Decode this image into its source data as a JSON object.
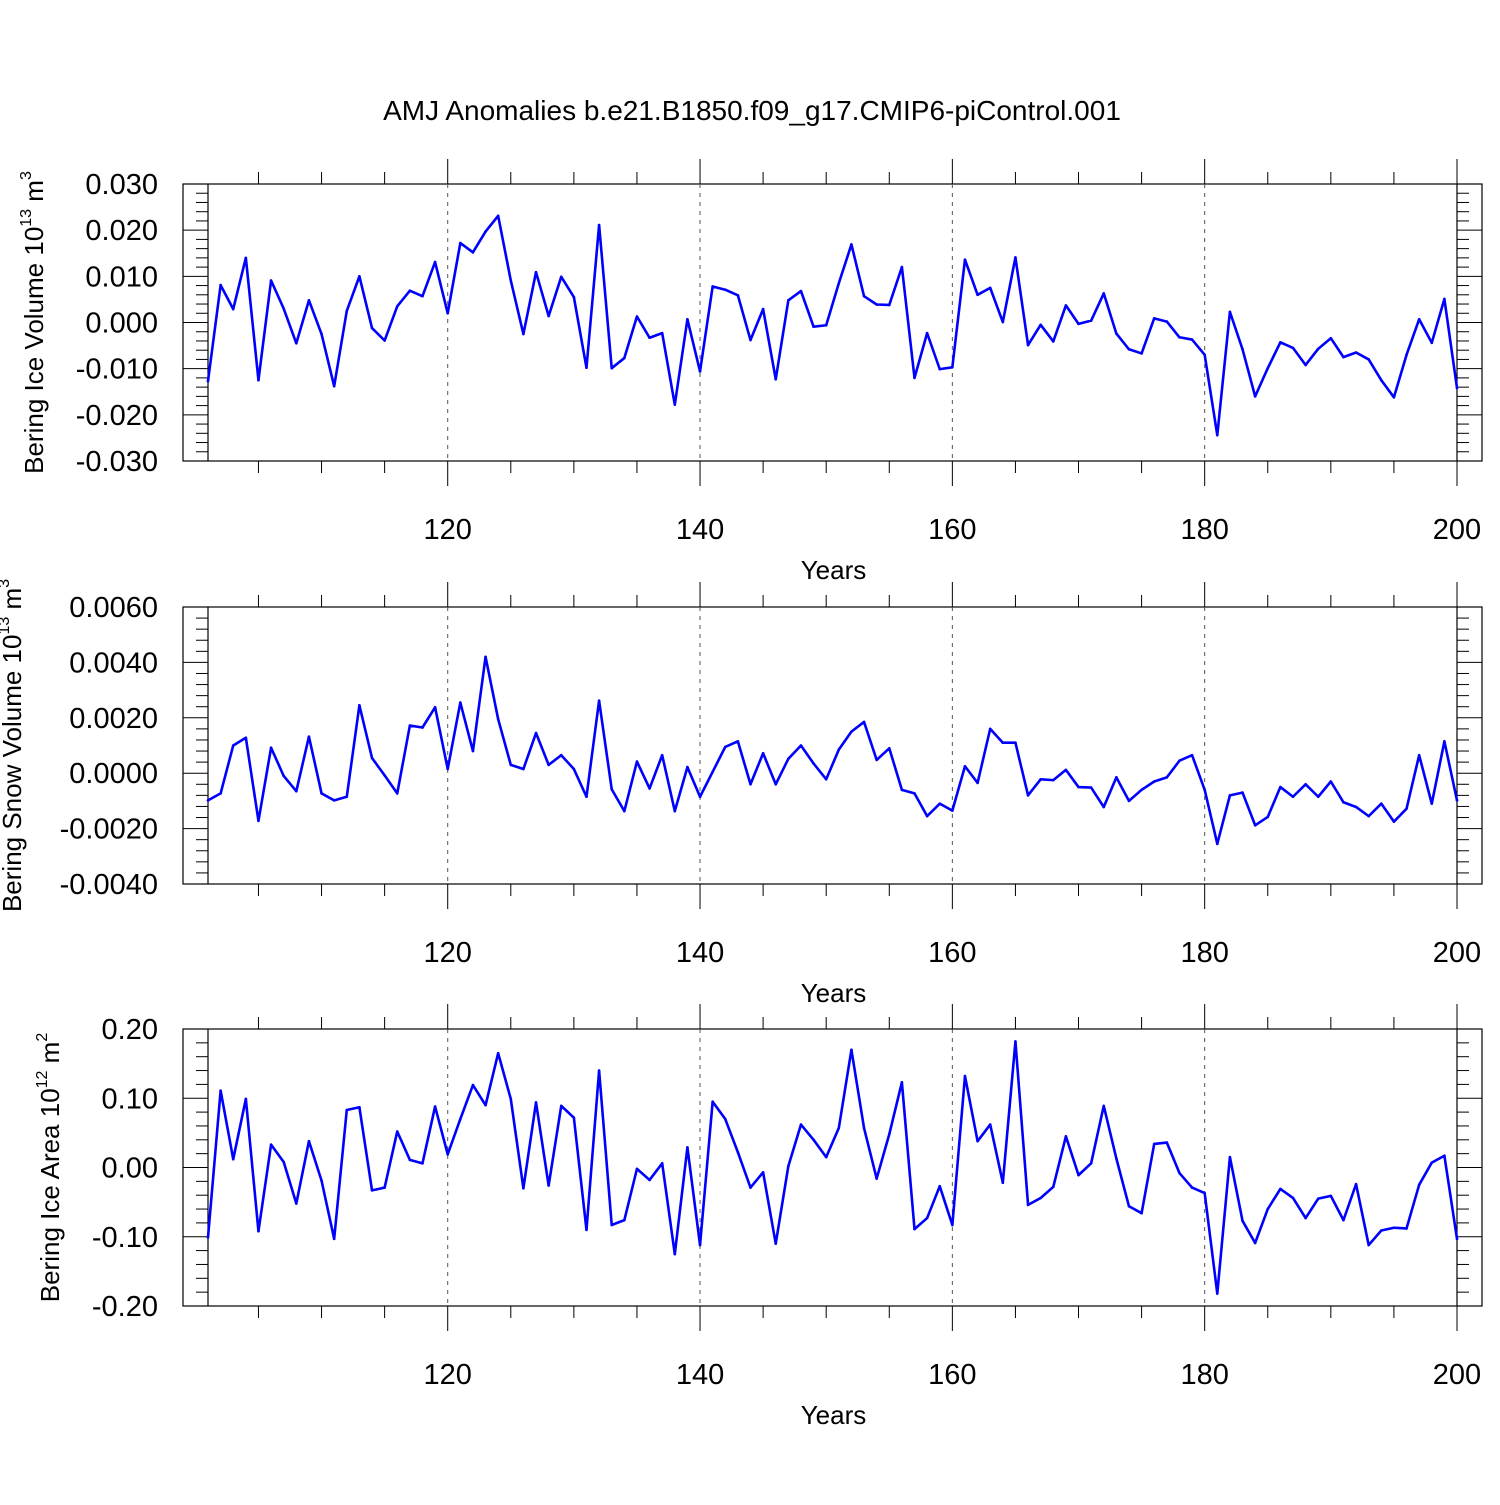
{
  "title": "AMJ Anomalies b.e21.B1850.f09_g17.CMIP6-piControl.001",
  "colors": {
    "series": "#0000ff",
    "axis": "#000000",
    "grid": "#555555"
  },
  "chart_data": [
    {
      "type": "line",
      "series_name": "Bering Ice Volume",
      "ylabel": "Bering Ice Volume",
      "ylabel_unit_base": "10",
      "ylabel_unit_exp": "13",
      "ylabel_unit_tail": "m",
      "ylabel_unit_tail_exp": "3",
      "xlabel": "Years",
      "xlim": [
        101,
        200
      ],
      "ylim": [
        -0.03,
        0.03
      ],
      "yticks": [
        -0.03,
        -0.02,
        -0.01,
        0.0,
        0.01,
        0.02,
        0.03
      ],
      "ytick_labels": [
        "-0.030",
        "-0.020",
        "-0.010",
        "0.000",
        "0.010",
        "0.020",
        "0.030"
      ],
      "xticks": [
        120,
        140,
        160,
        180,
        200
      ],
      "xtick_labels": [
        "120",
        "140",
        "160",
        "180",
        "200"
      ],
      "grid_x": [
        120,
        140,
        160,
        180
      ],
      "x_start": 101,
      "values": [
        -0.0127,
        0.0081,
        0.0029,
        0.014,
        -0.0125,
        0.0091,
        0.003,
        -0.0045,
        0.0048,
        -0.0025,
        -0.0138,
        0.0025,
        0.01,
        -0.0012,
        -0.0039,
        0.0035,
        0.0069,
        0.0057,
        0.0131,
        0.002,
        0.0172,
        0.0152,
        0.0197,
        0.0231,
        0.0091,
        -0.0025,
        0.0109,
        0.0014,
        0.0099,
        0.0055,
        -0.0098,
        0.0211,
        -0.0099,
        -0.0077,
        0.0013,
        -0.0033,
        -0.0023,
        -0.0178,
        0.0007,
        -0.0106,
        0.0078,
        0.0071,
        0.0059,
        -0.0038,
        0.0029,
        -0.0123,
        0.0048,
        0.0068,
        -0.0009,
        -0.0006,
        0.0085,
        0.0169,
        0.0057,
        0.0039,
        0.0038,
        0.012,
        -0.012,
        -0.0023,
        -0.0101,
        -0.0097,
        0.0136,
        0.006,
        0.0075,
        0.0001,
        0.0141,
        -0.0049,
        -0.0005,
        -0.0041,
        0.0037,
        -0.0003,
        0.0004,
        0.0063,
        -0.0024,
        -0.0058,
        -0.0067,
        0.0009,
        0.0002,
        -0.0032,
        -0.0037,
        -0.007,
        -0.0244,
        0.0023,
        -0.0058,
        -0.016,
        -0.0099,
        -0.0043,
        -0.0055,
        -0.0092,
        -0.0057,
        -0.0034,
        -0.0075,
        -0.0065,
        -0.008,
        -0.0125,
        -0.0162,
        -0.007,
        0.0007,
        -0.0044,
        0.0051,
        -0.0142
      ]
    },
    {
      "type": "line",
      "series_name": "Bering Snow Volume",
      "ylabel": "Bering Snow Volume",
      "ylabel_unit_base": "10",
      "ylabel_unit_exp": "13",
      "ylabel_unit_tail": "m",
      "ylabel_unit_tail_exp": "3",
      "xlabel": "Years",
      "xlim": [
        101,
        200
      ],
      "ylim": [
        -0.004,
        0.006
      ],
      "yticks": [
        -0.004,
        -0.002,
        0.0,
        0.002,
        0.004,
        0.006
      ],
      "ytick_labels": [
        "-0.0040",
        "-0.0020",
        "0.0000",
        "0.0020",
        "0.0040",
        "0.0060"
      ],
      "xticks": [
        120,
        140,
        160,
        180,
        200
      ],
      "xtick_labels": [
        "120",
        "140",
        "160",
        "180",
        "200"
      ],
      "grid_x": [
        120,
        140,
        160,
        180
      ],
      "x_start": 101,
      "values": [
        -0.00098,
        -0.00073,
        0.001,
        0.00128,
        -0.00172,
        0.00092,
        -0.0001,
        -0.00065,
        0.00132,
        -0.00073,
        -0.00098,
        -0.00085,
        0.00245,
        0.00055,
        -8e-05,
        -0.00073,
        0.00172,
        0.00165,
        0.00238,
        0.00015,
        0.00255,
        0.0008,
        0.0042,
        0.00195,
        0.0003,
        0.00015,
        0.00145,
        0.0003,
        0.00065,
        0.00015,
        -0.00085,
        0.00262,
        -0.00058,
        -0.00137,
        0.00042,
        -0.00055,
        0.00065,
        -0.00137,
        0.00022,
        -0.00085,
        5e-05,
        0.00095,
        0.00115,
        -0.0004,
        0.00072,
        -0.0004,
        0.00052,
        0.001,
        0.00035,
        -0.00022,
        0.00085,
        0.0015,
        0.00185,
        0.00048,
        0.0009,
        -0.0006,
        -0.00073,
        -0.00155,
        -0.0011,
        -0.00135,
        0.00025,
        -0.00035,
        0.0016,
        0.0011,
        0.0011,
        -0.0008,
        -0.00022,
        -0.00025,
        0.00012,
        -0.0005,
        -0.00052,
        -0.00122,
        -0.00015,
        -0.001,
        -0.0006,
        -0.0003,
        -0.00015,
        0.00045,
        0.00065,
        -0.0006,
        -0.00255,
        -0.0008,
        -0.0007,
        -0.00188,
        -0.00158,
        -0.0005,
        -0.00085,
        -0.0004,
        -0.00085,
        -0.0003,
        -0.00105,
        -0.00122,
        -0.00155,
        -0.0011,
        -0.00175,
        -0.00128,
        0.00065,
        -0.0011,
        0.00115,
        -0.00098
      ]
    },
    {
      "type": "line",
      "series_name": "Bering Ice Area",
      "ylabel": "Bering Ice Area",
      "ylabel_unit_base": "10",
      "ylabel_unit_exp": "12",
      "ylabel_unit_tail": "m",
      "ylabel_unit_tail_exp": "2",
      "xlabel": "Years",
      "xlim": [
        101,
        200
      ],
      "ylim": [
        -0.2,
        0.2
      ],
      "yticks": [
        -0.2,
        -0.1,
        0.0,
        0.1,
        0.2
      ],
      "ytick_labels": [
        "-0.20",
        "-0.10",
        "0.00",
        "0.10",
        "0.20"
      ],
      "xticks": [
        120,
        140,
        160,
        180,
        200
      ],
      "xtick_labels": [
        "120",
        "140",
        "160",
        "180",
        "200"
      ],
      "grid_x": [
        120,
        140,
        160,
        180
      ],
      "x_start": 101,
      "values": [
        -0.101,
        0.111,
        0.012,
        0.099,
        -0.092,
        0.033,
        0.008,
        -0.052,
        0.038,
        -0.019,
        -0.103,
        0.083,
        0.087,
        -0.033,
        -0.029,
        0.052,
        0.011,
        0.006,
        0.088,
        0.019,
        0.07,
        0.119,
        0.09,
        0.165,
        0.099,
        -0.03,
        0.094,
        -0.026,
        0.089,
        0.072,
        -0.09,
        0.14,
        -0.083,
        -0.076,
        -0.002,
        -0.018,
        0.006,
        -0.125,
        0.029,
        -0.112,
        0.095,
        0.07,
        0.022,
        -0.029,
        -0.007,
        -0.11,
        0.002,
        0.062,
        0.04,
        0.015,
        0.057,
        0.17,
        0.057,
        -0.016,
        0.048,
        0.123,
        -0.089,
        -0.073,
        -0.027,
        -0.083,
        0.132,
        0.038,
        0.062,
        -0.022,
        0.182,
        -0.054,
        -0.044,
        -0.028,
        0.045,
        -0.011,
        0.006,
        0.089,
        0.013,
        -0.056,
        -0.066,
        0.034,
        0.036,
        -0.008,
        -0.029,
        -0.037,
        -0.182,
        0.015,
        -0.077,
        -0.109,
        -0.06,
        -0.031,
        -0.044,
        -0.073,
        -0.045,
        -0.041,
        -0.076,
        -0.024,
        -0.112,
        -0.091,
        -0.087,
        -0.088,
        -0.025,
        0.007,
        0.017,
        -0.103
      ]
    }
  ]
}
